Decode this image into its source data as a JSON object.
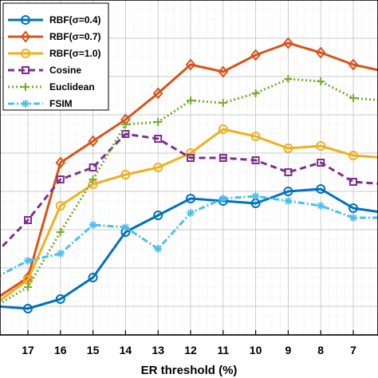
{
  "chart_data": {
    "type": "line",
    "title": "",
    "xlabel": "ER threshold (%)",
    "ylabel": "",
    "x_direction": "decreasing left-to-right",
    "x": [
      18,
      17,
      16,
      15,
      14,
      13,
      12,
      11,
      10,
      9,
      8,
      7,
      6
    ],
    "tick_labels": [
      "17",
      "16",
      "15",
      "14",
      "13",
      "12",
      "11",
      "10",
      "9",
      "8",
      "7"
    ],
    "grid": "on (major and minor)",
    "legend_position": "top-left",
    "series": [
      {
        "name": "RBF(σ=0.4)",
        "color": "#0072BD",
        "marker": "circle",
        "line": "solid",
        "values": [
          0.12,
          0.11,
          0.15,
          0.24,
          0.43,
          0.5,
          0.57,
          0.56,
          0.55,
          0.6,
          0.61,
          0.53,
          0.51
        ]
      },
      {
        "name": "RBF(σ=0.7)",
        "color": "#D95319",
        "marker": "diamond",
        "line": "solid",
        "values": [
          0.15,
          0.24,
          0.72,
          0.81,
          0.9,
          1.01,
          1.13,
          1.1,
          1.17,
          1.22,
          1.18,
          1.13,
          1.1
        ]
      },
      {
        "name": "RBF(σ=1.0)",
        "color": "#EDB120",
        "marker": "circle",
        "line": "solid",
        "values": [
          0.13,
          0.23,
          0.54,
          0.63,
          0.67,
          0.7,
          0.76,
          0.86,
          0.83,
          0.78,
          0.79,
          0.75,
          0.74
        ]
      },
      {
        "name": "Cosine",
        "color": "#7E2F8E",
        "marker": "square",
        "line": "dashed",
        "values": [
          0.34,
          0.48,
          0.65,
          0.7,
          0.84,
          0.82,
          0.74,
          0.74,
          0.73,
          0.68,
          0.72,
          0.64,
          0.63
        ]
      },
      {
        "name": "Euclidean",
        "color": "#77AC30",
        "marker": "plus",
        "line": "dotted",
        "values": [
          0.12,
          0.2,
          0.43,
          0.65,
          0.88,
          0.89,
          0.98,
          0.97,
          1.01,
          1.07,
          1.06,
          0.99,
          0.98
        ]
      },
      {
        "name": "FSIM",
        "color": "#4DBEEE",
        "marker": "asterisk",
        "line": "dashdot",
        "values": [
          0.24,
          0.31,
          0.34,
          0.46,
          0.45,
          0.36,
          0.51,
          0.57,
          0.58,
          0.56,
          0.54,
          0.49,
          0.49
        ]
      }
    ]
  }
}
